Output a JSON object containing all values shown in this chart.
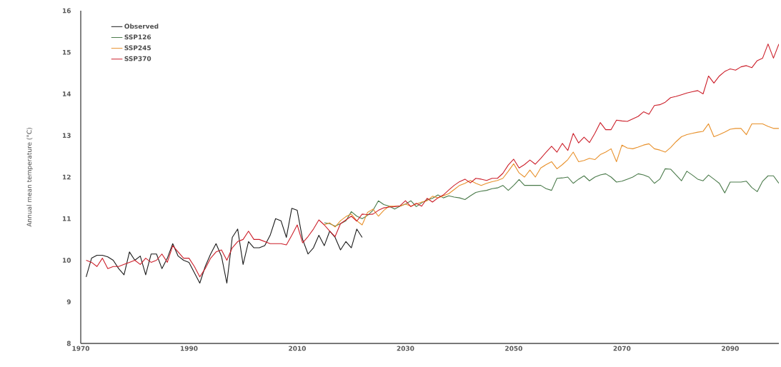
{
  "chart_data": {
    "type": "line",
    "ylabel": "Annual mean temperature (°C)",
    "xlim": [
      1970,
      2099
    ],
    "ylim": [
      8,
      16
    ],
    "xticks": [
      1970,
      1990,
      2010,
      2030,
      2050,
      2070,
      2090
    ],
    "yticks": [
      8,
      9,
      10,
      11,
      12,
      13,
      14,
      15,
      16
    ],
    "legend": "top left",
    "marker": "none",
    "line_style": "solid",
    "series": [
      {
        "name": "Observed",
        "color": "#1a1a1a",
        "x": [
          1971,
          1972,
          1973,
          1974,
          1975,
          1976,
          1977,
          1978,
          1979,
          1980,
          1981,
          1982,
          1983,
          1984,
          1985,
          1986,
          1987,
          1988,
          1989,
          1990,
          1991,
          1992,
          1993,
          1994,
          1995,
          1996,
          1997,
          1998,
          1999,
          2000,
          2001,
          2002,
          2003,
          2004,
          2005,
          2006,
          2007,
          2008,
          2009,
          2010,
          2011,
          2012,
          2013,
          2014,
          2015,
          2016,
          2017,
          2018,
          2019,
          2020,
          2021,
          2022
        ],
        "values": [
          9.6,
          10.05,
          10.12,
          10.12,
          10.08,
          10.0,
          9.8,
          9.65,
          10.2,
          10.0,
          10.1,
          9.65,
          10.15,
          10.15,
          9.8,
          10.05,
          10.4,
          10.1,
          10.0,
          9.95,
          9.7,
          9.45,
          9.85,
          10.15,
          10.4,
          10.1,
          9.45,
          10.55,
          10.75,
          9.9,
          10.45,
          10.3,
          10.3,
          10.35,
          10.6,
          11.0,
          10.95,
          10.55,
          11.25,
          11.2,
          10.5,
          10.15,
          10.3,
          10.6,
          10.35,
          10.7,
          10.55,
          10.25,
          10.45,
          10.3,
          10.75,
          10.55
        ]
      },
      {
        "name": "SSP126",
        "color": "#4a7a4a",
        "x": [
          2015,
          2016,
          2017,
          2018,
          2019,
          2020,
          2021,
          2022,
          2023,
          2024,
          2025,
          2026,
          2027,
          2028,
          2029,
          2030,
          2031,
          2032,
          2033,
          2034,
          2035,
          2036,
          2037,
          2038,
          2039,
          2040,
          2041,
          2042,
          2043,
          2044,
          2045,
          2046,
          2047,
          2048,
          2049,
          2050,
          2051,
          2052,
          2053,
          2054,
          2055,
          2056,
          2057,
          2058,
          2059,
          2060,
          2061,
          2062,
          2063,
          2064,
          2065,
          2066,
          2067,
          2068,
          2069,
          2070,
          2071,
          2072,
          2073,
          2074,
          2075,
          2076,
          2077,
          2078,
          2079,
          2080,
          2081,
          2082,
          2083,
          2084,
          2085,
          2086,
          2087,
          2088,
          2089,
          2090,
          2091,
          2092,
          2093,
          2094,
          2095,
          2096,
          2097,
          2098,
          2099
        ],
        "values": [
          10.9,
          10.88,
          10.82,
          10.88,
          10.95,
          11.17,
          11.06,
          11.0,
          11.08,
          11.2,
          11.43,
          11.34,
          11.3,
          11.23,
          11.3,
          11.35,
          11.43,
          11.29,
          11.38,
          11.45,
          11.49,
          11.57,
          11.5,
          11.55,
          11.52,
          11.5,
          11.46,
          11.55,
          11.63,
          11.66,
          11.68,
          11.72,
          11.74,
          11.8,
          11.68,
          11.8,
          11.94,
          11.8,
          11.8,
          11.8,
          11.8,
          11.72,
          11.68,
          11.97,
          11.98,
          12.0,
          11.85,
          11.95,
          12.03,
          11.91,
          12.0,
          12.05,
          12.08,
          12.0,
          11.88,
          11.9,
          11.95,
          12.0,
          12.08,
          12.05,
          12.0,
          11.85,
          11.95,
          12.2,
          12.19,
          12.05,
          11.91,
          12.14,
          12.05,
          11.95,
          11.91,
          12.05,
          11.95,
          11.85,
          11.62,
          11.88,
          11.88,
          11.88,
          11.9,
          11.75,
          11.65,
          11.9,
          12.03,
          12.03,
          11.85
        ]
      },
      {
        "name": "SSP245",
        "color": "#e8902a",
        "x": [
          2015,
          2016,
          2017,
          2018,
          2019,
          2020,
          2021,
          2022,
          2023,
          2024,
          2025,
          2026,
          2027,
          2028,
          2029,
          2030,
          2031,
          2032,
          2033,
          2034,
          2035,
          2036,
          2037,
          2038,
          2039,
          2040,
          2041,
          2042,
          2043,
          2044,
          2045,
          2046,
          2047,
          2048,
          2049,
          2050,
          2051,
          2052,
          2053,
          2054,
          2055,
          2056,
          2057,
          2058,
          2059,
          2060,
          2061,
          2062,
          2063,
          2064,
          2065,
          2066,
          2067,
          2068,
          2069,
          2070,
          2071,
          2072,
          2073,
          2074,
          2075,
          2076,
          2077,
          2078,
          2079,
          2080,
          2081,
          2082,
          2083,
          2084,
          2085,
          2086,
          2087,
          2088,
          2089,
          2090,
          2091,
          2092,
          2093,
          2094,
          2095,
          2096,
          2097,
          2098,
          2099
        ],
        "values": [
          10.85,
          10.9,
          10.8,
          10.95,
          11.05,
          11.11,
          10.95,
          10.85,
          11.15,
          11.23,
          11.06,
          11.2,
          11.3,
          11.3,
          11.3,
          11.35,
          11.3,
          11.35,
          11.4,
          11.43,
          11.54,
          11.5,
          11.55,
          11.6,
          11.7,
          11.8,
          11.85,
          11.92,
          11.85,
          11.8,
          11.85,
          11.89,
          11.92,
          11.97,
          12.14,
          12.32,
          12.1,
          12.0,
          12.17,
          12.0,
          12.22,
          12.3,
          12.37,
          12.2,
          12.3,
          12.42,
          12.6,
          12.37,
          12.4,
          12.45,
          12.42,
          12.54,
          12.6,
          12.68,
          12.37,
          12.77,
          12.7,
          12.68,
          12.72,
          12.77,
          12.8,
          12.68,
          12.65,
          12.6,
          12.71,
          12.85,
          12.97,
          13.02,
          13.05,
          13.08,
          13.1,
          13.28,
          12.97,
          13.02,
          13.08,
          13.15,
          13.17,
          13.17,
          13.02,
          13.28,
          13.28,
          13.28,
          13.22,
          13.17,
          13.17
        ]
      },
      {
        "name": "SSP370",
        "color": "#cc1f2a",
        "x": [
          1971,
          1972,
          1973,
          1974,
          1975,
          1976,
          1977,
          1978,
          1979,
          1980,
          1981,
          1982,
          1983,
          1984,
          1985,
          1986,
          1987,
          1988,
          1989,
          1990,
          1991,
          1992,
          1993,
          1994,
          1995,
          1996,
          1997,
          1998,
          1999,
          2000,
          2001,
          2002,
          2003,
          2004,
          2005,
          2006,
          2007,
          2008,
          2009,
          2010,
          2011,
          2012,
          2013,
          2014,
          2015,
          2016,
          2017,
          2018,
          2019,
          2020,
          2021,
          2022,
          2023,
          2024,
          2025,
          2026,
          2027,
          2028,
          2029,
          2030,
          2031,
          2032,
          2033,
          2034,
          2035,
          2036,
          2037,
          2038,
          2039,
          2040,
          2041,
          2042,
          2043,
          2044,
          2045,
          2046,
          2047,
          2048,
          2049,
          2050,
          2051,
          2052,
          2053,
          2054,
          2055,
          2056,
          2057,
          2058,
          2059,
          2060,
          2061,
          2062,
          2063,
          2064,
          2065,
          2066,
          2067,
          2068,
          2069,
          2070,
          2071,
          2072,
          2073,
          2074,
          2075,
          2076,
          2077,
          2078,
          2079,
          2080,
          2081,
          2082,
          2083,
          2084,
          2085,
          2086,
          2087,
          2088,
          2089,
          2090,
          2091,
          2092,
          2093,
          2094,
          2095,
          2096,
          2097,
          2098,
          2099
        ],
        "values": [
          10.0,
          9.95,
          9.85,
          10.05,
          9.8,
          9.85,
          9.85,
          9.9,
          9.95,
          10.0,
          9.9,
          10.05,
          9.95,
          10.0,
          10.15,
          9.95,
          10.35,
          10.2,
          10.05,
          10.05,
          9.85,
          9.6,
          9.8,
          10.05,
          10.2,
          10.25,
          10.0,
          10.3,
          10.45,
          10.5,
          10.7,
          10.5,
          10.5,
          10.45,
          10.4,
          10.4,
          10.4,
          10.37,
          10.6,
          10.85,
          10.42,
          10.57,
          10.75,
          10.97,
          10.85,
          10.7,
          10.57,
          10.88,
          10.97,
          11.06,
          10.94,
          11.11,
          11.1,
          11.11,
          11.2,
          11.26,
          11.28,
          11.29,
          11.31,
          11.43,
          11.29,
          11.37,
          11.3,
          11.49,
          11.4,
          11.5,
          11.57,
          11.69,
          11.8,
          11.89,
          11.95,
          11.86,
          11.97,
          11.95,
          11.92,
          11.97,
          11.97,
          12.09,
          12.29,
          12.43,
          12.22,
          12.3,
          12.41,
          12.31,
          12.45,
          12.6,
          12.74,
          12.6,
          12.81,
          12.64,
          13.05,
          12.82,
          12.96,
          12.83,
          13.05,
          13.31,
          13.14,
          13.14,
          13.37,
          13.35,
          13.34,
          13.4,
          13.46,
          13.57,
          13.51,
          13.72,
          13.74,
          13.8,
          13.91,
          13.94,
          13.98,
          14.02,
          14.05,
          14.08,
          14.0,
          14.43,
          14.26,
          14.43,
          14.54,
          14.6,
          14.57,
          14.65,
          14.68,
          14.63,
          14.8,
          14.86,
          15.2,
          14.86,
          15.2
        ]
      }
    ]
  }
}
